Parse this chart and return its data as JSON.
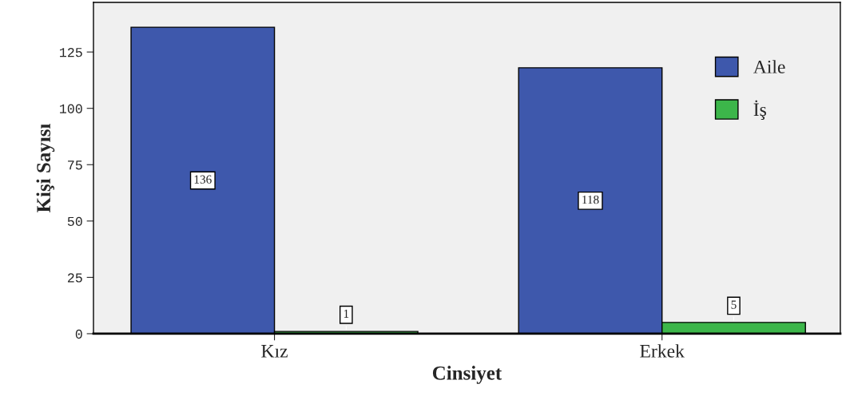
{
  "chart_data": {
    "type": "bar",
    "xlabel": "Cinsiyet",
    "ylabel": "Kişi Sayısı",
    "categories": [
      "Kız",
      "Erkek"
    ],
    "series": [
      {
        "name": "Aile",
        "color": "#3e58ac",
        "values": [
          136,
          118
        ]
      },
      {
        "name": "İş",
        "color": "#3cb64a",
        "values": [
          1,
          5
        ]
      }
    ],
    "ylim": [
      0,
      147
    ],
    "yticks": [
      0,
      25,
      50,
      75,
      100,
      125
    ],
    "data_labels": true,
    "legend": "top right",
    "grid": false
  }
}
